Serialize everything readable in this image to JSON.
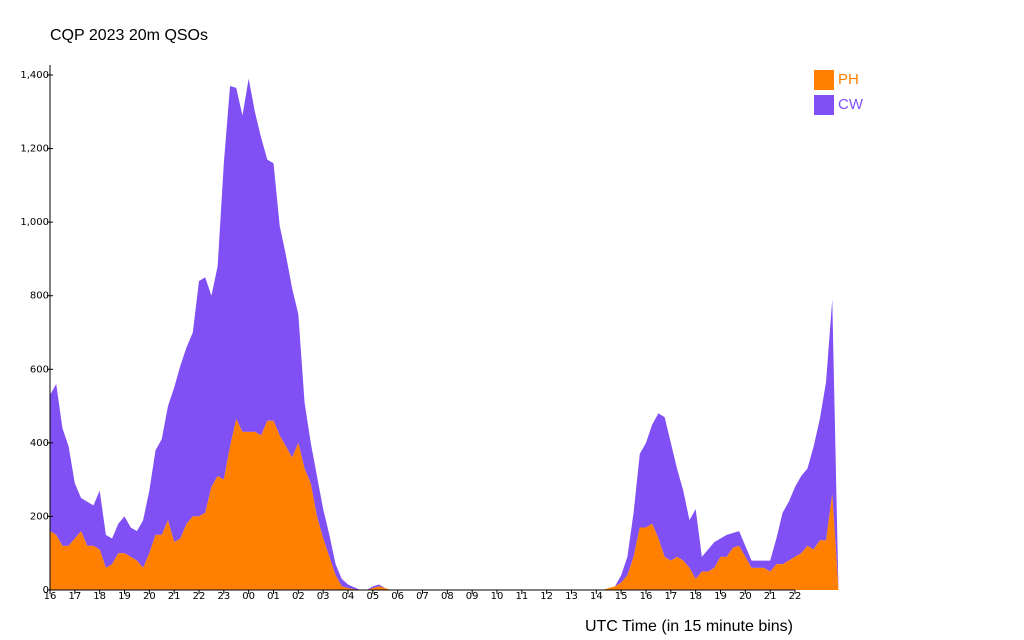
{
  "chart_data": {
    "type": "area",
    "stacked": true,
    "title": "CQP 2023 20m QSOs",
    "xlabel": "UTC Time (in 15 minute bins)",
    "ylabel": "",
    "ylim": [
      0,
      1400
    ],
    "yticks": [
      0,
      200,
      400,
      600,
      800,
      1000,
      1200,
      1400
    ],
    "ytick_labels": [
      "0",
      "200",
      "400",
      "600",
      "800",
      "1,000",
      "1,200",
      "1,400"
    ],
    "xtick_labels": [
      "16",
      "17",
      "18",
      "19",
      "20",
      "21",
      "22",
      "23",
      "00",
      "01",
      "02",
      "03",
      "04",
      "05",
      "06",
      "07",
      "08",
      "09",
      "10",
      "11",
      "12",
      "13",
      "14",
      "15",
      "16",
      "17",
      "18",
      "19",
      "20",
      "21",
      "22"
    ],
    "bins_per_hour": 4,
    "legend": {
      "position": "top-right"
    },
    "series": [
      {
        "name": "PH",
        "color": "#ff8000",
        "values": [
          160,
          150,
          120,
          120,
          140,
          160,
          120,
          120,
          110,
          60,
          70,
          100,
          100,
          90,
          80,
          60,
          100,
          150,
          150,
          190,
          130,
          140,
          180,
          200,
          200,
          210,
          280,
          310,
          300,
          390,
          465,
          430,
          430,
          430,
          420,
          460,
          460,
          420,
          390,
          360,
          400,
          330,
          290,
          200,
          140,
          90,
          40,
          10,
          5,
          2,
          0,
          0,
          5,
          10,
          5,
          0,
          0,
          0,
          0,
          0,
          0,
          0,
          0,
          0,
          0,
          0,
          0,
          0,
          0,
          0,
          0,
          0,
          0,
          0,
          0,
          0,
          0,
          0,
          0,
          0,
          0,
          0,
          0,
          0,
          0,
          0,
          0,
          0,
          0,
          0,
          5,
          10,
          20,
          40,
          90,
          170,
          170,
          180,
          140,
          90,
          80,
          90,
          80,
          60,
          30,
          50,
          50,
          60,
          90,
          90,
          115,
          120,
          90,
          60,
          60,
          60,
          50,
          70,
          70,
          80,
          90,
          100,
          120,
          110,
          135,
          135,
          260,
          0
        ]
      },
      {
        "name": "CW",
        "color": "#8050f5",
        "values": [
          370,
          410,
          320,
          270,
          150,
          90,
          120,
          110,
          160,
          90,
          70,
          80,
          100,
          80,
          80,
          130,
          170,
          230,
          260,
          310,
          420,
          470,
          480,
          500,
          640,
          640,
          520,
          570,
          860,
          980,
          900,
          860,
          960,
          870,
          810,
          710,
          700,
          570,
          520,
          460,
          350,
          180,
          110,
          110,
          80,
          60,
          30,
          20,
          10,
          5,
          0,
          0,
          5,
          5,
          0,
          0,
          0,
          0,
          0,
          0,
          0,
          0,
          0,
          0,
          0,
          0,
          0,
          0,
          0,
          0,
          0,
          0,
          0,
          0,
          0,
          0,
          0,
          0,
          0,
          0,
          0,
          0,
          0,
          0,
          0,
          0,
          0,
          0,
          0,
          0,
          0,
          0,
          20,
          50,
          120,
          200,
          230,
          270,
          340,
          380,
          320,
          240,
          190,
          130,
          190,
          40,
          60,
          70,
          50,
          60,
          40,
          40,
          30,
          20,
          20,
          20,
          30,
          70,
          140,
          160,
          190,
          210,
          210,
          280,
          330,
          430,
          530,
          0
        ]
      }
    ]
  }
}
